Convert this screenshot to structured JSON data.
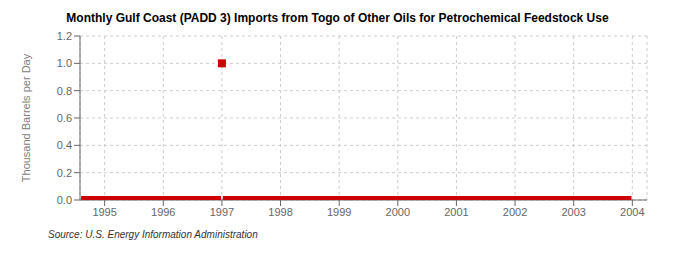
{
  "chart_data": {
    "type": "scatter",
    "title": "Monthly Gulf Coast (PADD 3) Imports from Togo of Other Oils for Petrochemical Feedstock Use",
    "ylabel": "Thousand Barrels per Day",
    "annotations": [
      "Source: U.S. Energy Information Administration"
    ],
    "color": "#CC0000",
    "marker": "square",
    "grid": true,
    "xlim": [
      1994.58,
      2004.25
    ],
    "ylim": [
      0.0,
      1.2
    ],
    "xticks": [
      1995,
      1996,
      1997,
      1998,
      1999,
      2000,
      2001,
      2002,
      2003,
      2004
    ],
    "yticks": [
      {
        "value": 0.0,
        "label": "0.0"
      },
      0.2,
      0.4,
      0.6,
      0.8,
      {
        "value": 1.0,
        "label": "1.0"
      },
      1.2
    ],
    "x": [
      1994.667,
      1994.75,
      1994.833,
      1994.917,
      1995.0,
      1995.083,
      1995.167,
      1995.25,
      1995.333,
      1995.417,
      1995.5,
      1995.583,
      1995.667,
      1995.75,
      1995.833,
      1995.917,
      1996.0,
      1996.083,
      1996.167,
      1996.25,
      1996.333,
      1996.417,
      1996.5,
      1996.583,
      1996.667,
      1996.75,
      1996.833,
      1996.917,
      1997.0,
      1997.083,
      1997.167,
      1997.25,
      1997.333,
      1997.417,
      1997.5,
      1997.583,
      1997.667,
      1997.75,
      1997.833,
      1997.917,
      1998.0,
      1998.083,
      1998.167,
      1998.25,
      1998.333,
      1998.417,
      1998.5,
      1998.583,
      1998.667,
      1998.75,
      1998.833,
      1998.917,
      1999.0,
      1999.083,
      1999.167,
      1999.25,
      1999.333,
      1999.417,
      1999.5,
      1999.583,
      1999.667,
      1999.75,
      1999.833,
      1999.917,
      2000.0,
      2000.083,
      2000.167,
      2000.25,
      2000.333,
      2000.417,
      2000.5,
      2000.583,
      2000.667,
      2000.75,
      2000.833,
      2000.917,
      2001.0,
      2001.083,
      2001.167,
      2001.25,
      2001.333,
      2001.417,
      2001.5,
      2001.583,
      2001.667,
      2001.75,
      2001.833,
      2001.917,
      2002.0,
      2002.083,
      2002.167,
      2002.25,
      2002.333,
      2002.417,
      2002.5,
      2002.583,
      2002.667,
      2002.75,
      2002.833,
      2002.917,
      2003.0,
      2003.083,
      2003.167,
      2003.25,
      2003.333,
      2003.417,
      2003.5,
      2003.583,
      2003.667,
      2003.75,
      2003.833,
      2003.917
    ],
    "values": [
      0.0,
      0.0,
      0.0,
      0.0,
      0.0,
      0.0,
      0.0,
      0.0,
      0.0,
      0.0,
      0.0,
      0.0,
      0.0,
      0.0,
      0.0,
      0.0,
      0.0,
      0.0,
      0.0,
      0.0,
      0.0,
      0.0,
      0.0,
      0.0,
      0.0,
      0.0,
      0.0,
      0.0,
      1.0,
      0.0,
      0.0,
      0.0,
      0.0,
      0.0,
      0.0,
      0.0,
      0.0,
      0.0,
      0.0,
      0.0,
      0.0,
      0.0,
      0.0,
      0.0,
      0.0,
      0.0,
      0.0,
      0.0,
      0.0,
      0.0,
      0.0,
      0.0,
      0.0,
      0.0,
      0.0,
      0.0,
      0.0,
      0.0,
      0.0,
      0.0,
      0.0,
      0.0,
      0.0,
      0.0,
      0.0,
      0.0,
      0.0,
      0.0,
      0.0,
      0.0,
      0.0,
      0.0,
      0.0,
      0.0,
      0.0,
      0.0,
      0.0,
      0.0,
      0.0,
      0.0,
      0.0,
      0.0,
      0.0,
      0.0,
      0.0,
      0.0,
      0.0,
      0.0,
      0.0,
      0.0,
      0.0,
      0.0,
      0.0,
      0.0,
      0.0,
      0.0,
      0.0,
      0.0,
      0.0,
      0.0,
      0.0,
      0.0,
      0.0,
      0.0,
      0.0,
      0.0,
      0.0,
      0.0,
      0.0,
      0.0,
      0.0,
      0.0
    ]
  }
}
